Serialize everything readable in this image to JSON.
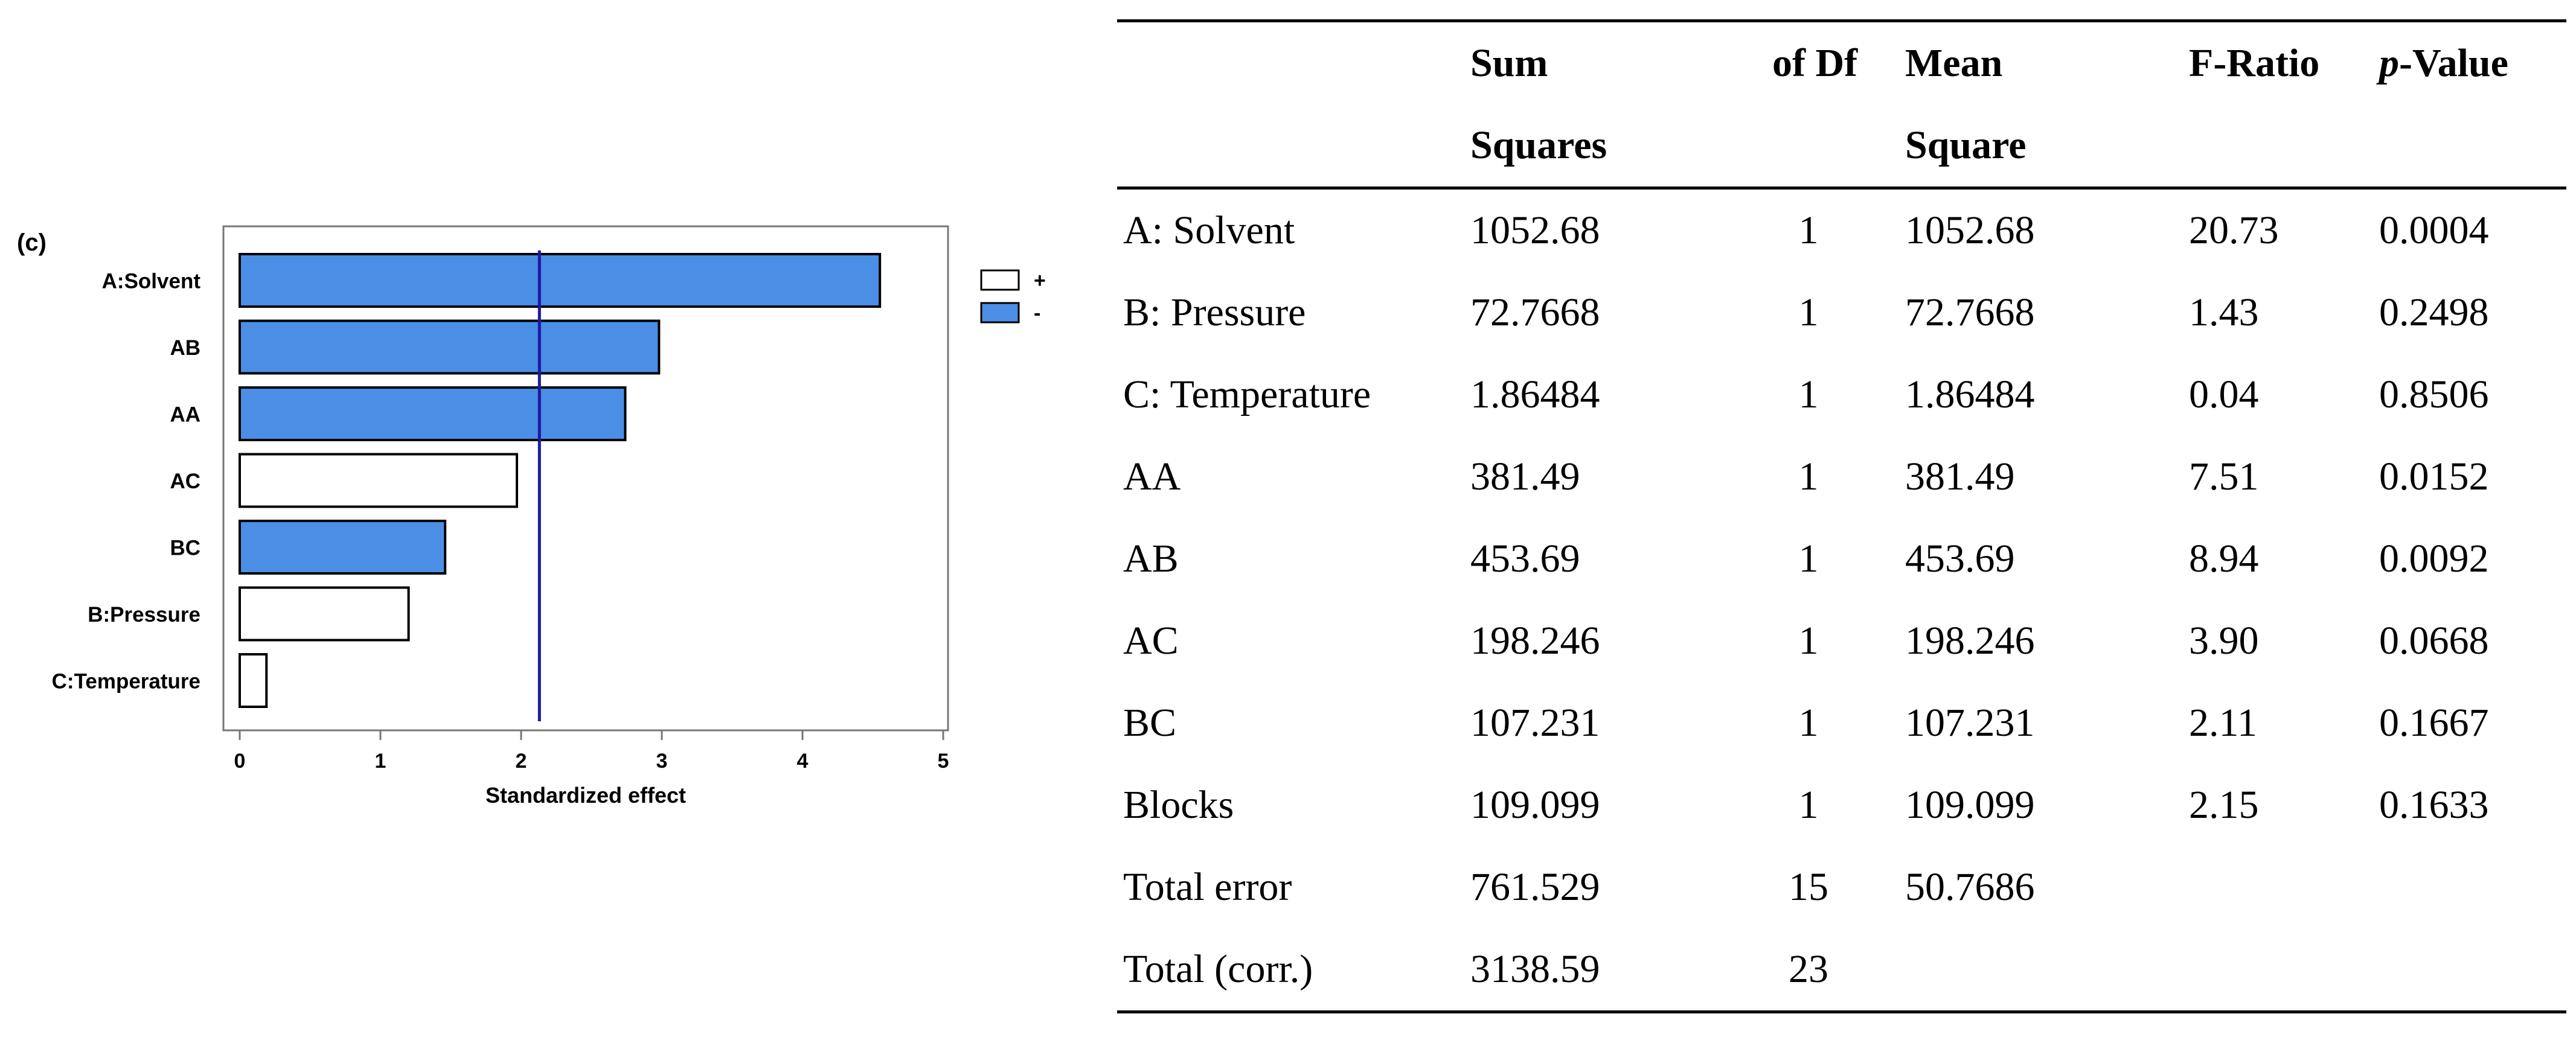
{
  "chart_data": {
    "type": "bar",
    "orientation": "horizontal",
    "panel_label": "(c)",
    "categories": [
      "A:Solvent",
      "AB",
      "AA",
      "AC",
      "BC",
      "B:Pressure",
      "C:Temperature"
    ],
    "values": [
      4.55,
      2.98,
      2.74,
      1.97,
      1.46,
      1.2,
      0.19
    ],
    "signs": [
      "-",
      "-",
      "-",
      "+",
      "-",
      "+",
      "+"
    ],
    "xlabel": "Standardized effect",
    "ylabel": "",
    "xlim": [
      0,
      5
    ],
    "xticks": [
      "0",
      "1",
      "2",
      "3",
      "4",
      "5"
    ],
    "threshold": 2.13,
    "legend": [
      {
        "label": "+",
        "color": "#ffffff"
      },
      {
        "label": "-",
        "color": "#4a8ee6"
      }
    ],
    "legend_position": "right",
    "colors": {
      "positive": "#ffffff",
      "negative": "#4a8ee6",
      "line": "#1a1aa0"
    },
    "grid": false
  },
  "table": {
    "headers": {
      "col1_line1": "Sum",
      "col1_line2": "Squares",
      "col2_line1": "of  Df",
      "col3_line1": "Mean",
      "col3_line2": "Square",
      "col4_line1": "F-Ratio",
      "col5_italic": "p",
      "col5_rest": "-Value"
    },
    "rows": [
      {
        "source": "A: Solvent",
        "ss": "1052.68",
        "df": "1",
        "ms": "1052.68",
        "f": "20.73",
        "p": "0.0004"
      },
      {
        "source": "B: Pressure",
        "ss": "72.7668",
        "df": "1",
        "ms": "72.7668",
        "f": "1.43",
        "p": "0.2498"
      },
      {
        "source": "C: Temperature",
        "ss": "1.86484",
        "df": "1",
        "ms": "1.86484",
        "f": "0.04",
        "p": "0.8506"
      },
      {
        "source": "AA",
        "ss": "381.49",
        "df": "1",
        "ms": "381.49",
        "f": "7.51",
        "p": "0.0152"
      },
      {
        "source": "AB",
        "ss": "453.69",
        "df": "1",
        "ms": "453.69",
        "f": "8.94",
        "p": "0.0092"
      },
      {
        "source": "AC",
        "ss": "198.246",
        "df": "1",
        "ms": "198.246",
        "f": "3.90",
        "p": "0.0668"
      },
      {
        "source": "BC",
        "ss": "107.231",
        "df": "1",
        "ms": "107.231",
        "f": "2.11",
        "p": "0.1667"
      },
      {
        "source": "Blocks",
        "ss": "109.099",
        "df": "1",
        "ms": "109.099",
        "f": "2.15",
        "p": "0.1633"
      },
      {
        "source": "Total error",
        "ss": "761.529",
        "df": "15",
        "ms": "50.7686",
        "f": "",
        "p": ""
      },
      {
        "source": "Total (corr.)",
        "ss": "3138.59",
        "df": "23",
        "ms": "",
        "f": "",
        "p": ""
      }
    ]
  }
}
